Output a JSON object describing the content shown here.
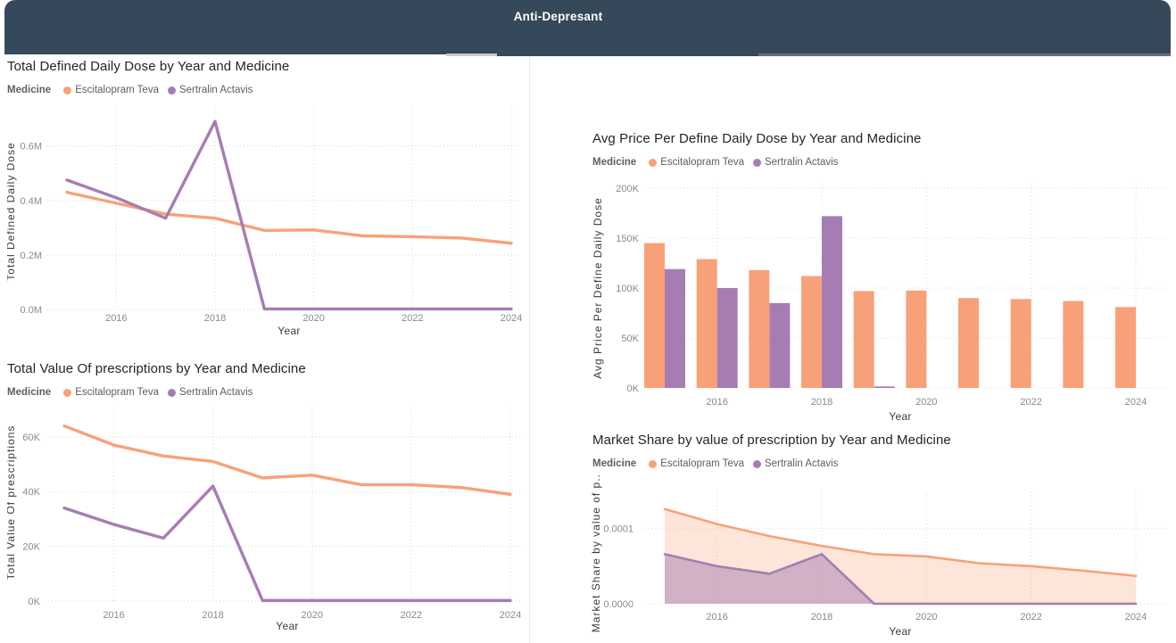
{
  "header": {
    "title": "Anti-Depresant",
    "background": "#36495A"
  },
  "palette": {
    "escitalopram": "#F8A178",
    "sertralin": "#A67DB2",
    "escitalopram_area": "rgba(248,161,120,0.28)",
    "sertralin_area": "rgba(166,125,178,0.50)",
    "gridline": "#D8D8D8",
    "tick_text": "#8A8A8A",
    "title_text": "#252423"
  },
  "charts": [
    {
      "title": "Total Defined Daily Dose by Year and Medicine",
      "legend_label": "Medicine",
      "chart_data": {
        "type": "line",
        "x": [
          2015,
          2016,
          2017,
          2018,
          2019,
          2020,
          2021,
          2022,
          2023,
          2024
        ],
        "xticks": [
          2016,
          2018,
          2020,
          2022,
          2024
        ],
        "xlabel": "Year",
        "ylabel": "Total Defined Daily Dose",
        "ylim": [
          0,
          0.72
        ],
        "yticks": [
          {
            "v": 0.0,
            "label": "0.0M"
          },
          {
            "v": 0.2,
            "label": "0.2M"
          },
          {
            "v": 0.4,
            "label": "0.4M"
          },
          {
            "v": 0.6,
            "label": "0.6M"
          }
        ],
        "unit": "M",
        "series": [
          {
            "name": "Escitalopram Teva",
            "color": "#F8A178",
            "values": [
              0.43,
              0.39,
              0.35,
              0.335,
              0.29,
              0.292,
              0.27,
              0.267,
              0.262,
              0.243
            ]
          },
          {
            "name": "Sertralin Actavis",
            "color": "#A67DB2",
            "values": [
              0.475,
              0.41,
              0.335,
              0.69,
              0.002,
              0.002,
              0.002,
              0.002,
              0.002,
              0.002
            ]
          }
        ]
      }
    },
    {
      "title": "Total Value Of prescriptions by Year and Medicine",
      "legend_label": "Medicine",
      "chart_data": {
        "type": "line",
        "x": [
          2015,
          2016,
          2017,
          2018,
          2019,
          2020,
          2021,
          2022,
          2023,
          2024
        ],
        "xticks": [
          2016,
          2018,
          2020,
          2022,
          2024
        ],
        "xlabel": "Year",
        "ylabel": "Total Value Of prescriptions",
        "ylim": [
          0,
          72
        ],
        "yticks": [
          {
            "v": 0,
            "label": "0K"
          },
          {
            "v": 20,
            "label": "20K"
          },
          {
            "v": 40,
            "label": "40K"
          },
          {
            "v": 60,
            "label": "60K"
          }
        ],
        "unit": "K",
        "series": [
          {
            "name": "Escitalopram Teva",
            "color": "#F8A178",
            "values": [
              64,
              57,
              53,
              51,
              45,
              46,
              42.5,
              42.5,
              41.5,
              39
            ]
          },
          {
            "name": "Sertralin Actavis",
            "color": "#A67DB2",
            "values": [
              34,
              28,
              23,
              42,
              0.2,
              0.2,
              0.2,
              0.2,
              0.2,
              0.2
            ]
          }
        ]
      }
    },
    {
      "title": "Avg Price Per Define Daily Dose by Year and Medicine",
      "legend_label": "Medicine",
      "chart_data": {
        "type": "bar",
        "x": [
          2015,
          2016,
          2017,
          2018,
          2019,
          2020,
          2021,
          2022,
          2023,
          2024
        ],
        "xticks": [
          2016,
          2018,
          2020,
          2022,
          2024
        ],
        "xlabel": "Year",
        "ylabel": "Avg Price Per Define Daily Dose",
        "ylim": [
          0,
          200
        ],
        "yticks": [
          {
            "v": 0,
            "label": "0K"
          },
          {
            "v": 50,
            "label": "50K"
          },
          {
            "v": 100,
            "label": "100K"
          },
          {
            "v": 150,
            "label": "150K"
          },
          {
            "v": 200,
            "label": "200K"
          }
        ],
        "unit": "K",
        "series": [
          {
            "name": "Escitalopram Teva",
            "color": "#F8A178",
            "values": [
              145,
              129,
              118,
              112,
              97,
              97.5,
              90,
              89,
              87,
              81
            ]
          },
          {
            "name": "Sertralin Actavis",
            "color": "#A67DB2",
            "values": [
              119,
              100,
              85,
              172,
              1.5,
              null,
              null,
              null,
              null,
              null
            ]
          }
        ]
      }
    },
    {
      "title": "Market Share by value of prescription by Year and Medicine",
      "legend_label": "Medicine",
      "chart_data": {
        "type": "area",
        "x": [
          2015,
          2016,
          2017,
          2018,
          2019,
          2020,
          2021,
          2022,
          2023,
          2024
        ],
        "xticks": [
          2016,
          2018,
          2020,
          2022,
          2024
        ],
        "xlabel": "Year",
        "ylabel": "Market Share by value of p...",
        "ylim": [
          0,
          0.00014
        ],
        "yticks": [
          {
            "v": 0.0,
            "label": "0.0000"
          },
          {
            "v": 0.0001,
            "label": "0.0001"
          }
        ],
        "series": [
          {
            "name": "Escitalopram Teva",
            "color": "#F8A178",
            "fill": "rgba(248,161,120,0.28)",
            "values": [
              0.000126,
              0.000106,
              9e-05,
              7.7e-05,
              6.6e-05,
              6.3e-05,
              5.4e-05,
              5e-05,
              4.4e-05,
              3.7e-05
            ]
          },
          {
            "name": "Sertralin Actavis",
            "color": "#A67DB2",
            "fill": "rgba(166,125,178,0.50)",
            "values": [
              6.6e-05,
              5e-05,
              4e-05,
              6.6e-05,
              0,
              0,
              0,
              0,
              0,
              0
            ]
          }
        ]
      }
    }
  ]
}
